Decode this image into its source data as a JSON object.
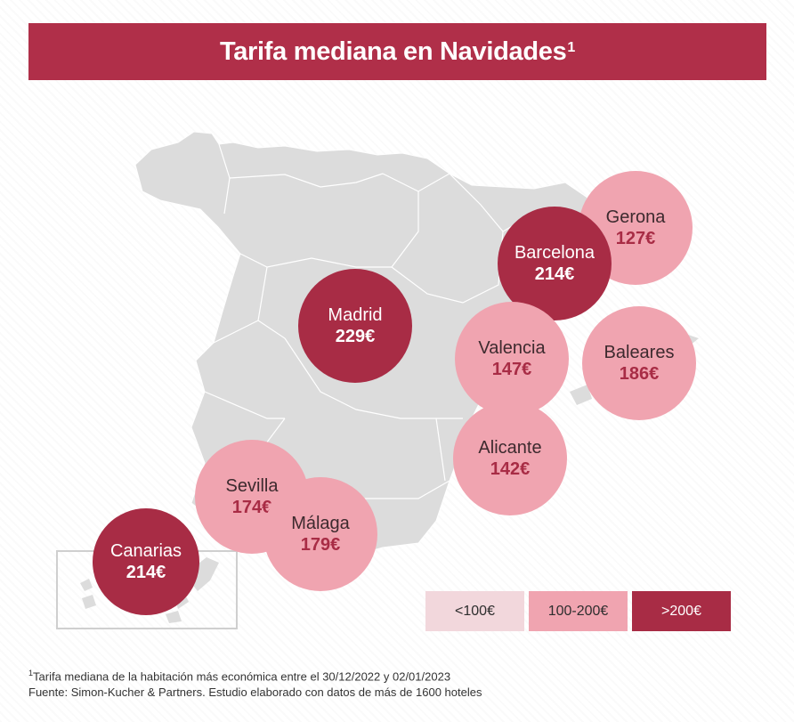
{
  "title": "Tarifa mediana en Navidades",
  "title_sup": "1",
  "cities": [
    {
      "name": "Gerona",
      "price": "127€",
      "tier": "mid"
    },
    {
      "name": "Barcelona",
      "price": "214€",
      "tier": "high"
    },
    {
      "name": "Madrid",
      "price": "229€",
      "tier": "high"
    },
    {
      "name": "Valencia",
      "price": "147€",
      "tier": "mid"
    },
    {
      "name": "Baleares",
      "price": "186€",
      "tier": "mid"
    },
    {
      "name": "Alicante",
      "price": "142€",
      "tier": "mid"
    },
    {
      "name": "Sevilla",
      "price": "174€",
      "tier": "mid"
    },
    {
      "name": "Málaga",
      "price": "179€",
      "tier": "mid"
    },
    {
      "name": "Canarias",
      "price": "214€",
      "tier": "high"
    }
  ],
  "legend": [
    {
      "label": "<100€",
      "color": "#f2d7dc"
    },
    {
      "label": "100-200€",
      "color": "#f0a4b0"
    },
    {
      "label": ">200€",
      "color": "#a82c45"
    }
  ],
  "footnote": {
    "sup": "1",
    "line1": "Tarifa mediana de la habitación más económica entre el 30/12/2022 y 02/01/2023",
    "line2": "Fuente: Simon-Kucher & Partners. Estudio elaborado con datos de más de 1600 hoteles"
  },
  "colors": {
    "brand": "#b02f49",
    "high": "#a82c45",
    "mid": "#f0a4b0",
    "low": "#f2d7dc",
    "land": "#dcdcdc"
  }
}
